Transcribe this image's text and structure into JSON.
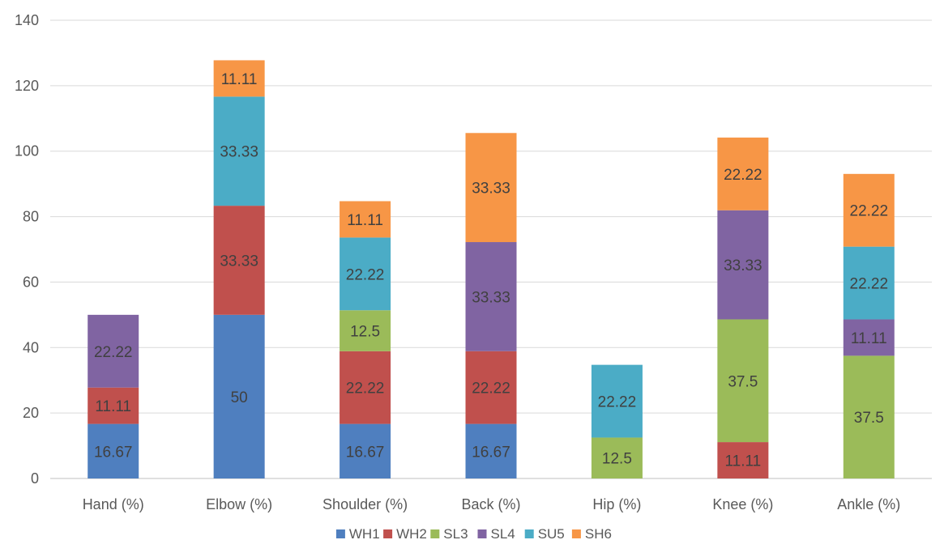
{
  "chart_data": {
    "type": "bar",
    "stacked": true,
    "title": "",
    "xlabel": "",
    "ylabel": "",
    "ylim": [
      0,
      140
    ],
    "yticks": [
      0,
      20,
      40,
      60,
      80,
      100,
      120,
      140
    ],
    "ytick_labels": [
      "0",
      "20",
      "40",
      "60",
      "80",
      "100",
      "120",
      "140"
    ],
    "grid": true,
    "legend_position": "bottom",
    "categories": [
      "Hand (%)",
      "Elbow (%)",
      "Shoulder (%)",
      "Back (%)",
      "Hip (%)",
      "Knee (%)",
      "Ankle (%)"
    ],
    "series": [
      {
        "name": "WH1",
        "color": "#4F7FBF",
        "values": [
          16.67,
          50,
          16.67,
          16.67,
          0,
          0,
          0
        ],
        "labels": [
          "16.67",
          "50",
          "16.67",
          "16.67",
          "",
          "",
          ""
        ]
      },
      {
        "name": "WH2",
        "color": "#C0504D",
        "values": [
          11.11,
          33.33,
          22.22,
          22.22,
          0,
          11.11,
          0
        ],
        "labels": [
          "11.11",
          "33.33",
          "22.22",
          "22.22",
          "",
          "11.11",
          ""
        ]
      },
      {
        "name": "SL3",
        "color": "#9BBB59",
        "values": [
          0,
          0,
          12.5,
          0,
          12.5,
          37.5,
          37.5
        ],
        "labels": [
          "",
          "",
          "12.5",
          "",
          "12.5",
          "37.5",
          "37.5"
        ]
      },
      {
        "name": "SL4",
        "color": "#8064A2",
        "values": [
          22.22,
          0,
          0,
          33.33,
          0,
          33.33,
          11.11
        ],
        "labels": [
          "22.22",
          "",
          "",
          "33.33",
          "",
          "33.33",
          "11.11"
        ]
      },
      {
        "name": "SU5",
        "color": "#4BACC6",
        "values": [
          0,
          33.33,
          22.22,
          0,
          22.22,
          0,
          22.22
        ],
        "labels": [
          "",
          "33.33",
          "22.22",
          "",
          "22.22",
          "",
          "22.22"
        ]
      },
      {
        "name": "SH6",
        "color": "#F79646",
        "values": [
          0,
          11.11,
          11.11,
          33.33,
          0,
          22.22,
          22.22
        ],
        "labels": [
          "",
          "11.11",
          "11.11",
          "33.33",
          "",
          "22.22",
          "22.22"
        ]
      }
    ]
  }
}
